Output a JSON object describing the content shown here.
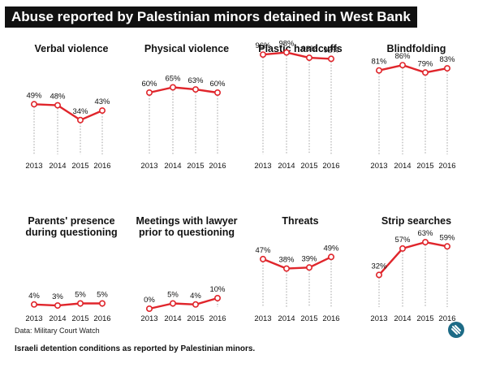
{
  "header": {
    "title": "Abuse reported by Palestinian minors detained in West Bank"
  },
  "footer": {
    "source": "Data: Military Court Watch",
    "caption": "Israeli detention conditions as reported by Palestinian minors."
  },
  "colors": {
    "line": "#e0252b",
    "marker_fill": "#ffffff",
    "text": "#111111",
    "grid": "#888888",
    "logo": "#1d6b86"
  },
  "logo": {
    "icon": "logo-icon"
  },
  "chart_data": [
    {
      "type": "line",
      "title": [
        "Verbal violence"
      ],
      "x": [
        "2013",
        "2014",
        "2015",
        "2016"
      ],
      "values": [
        49,
        48,
        34,
        43
      ],
      "labels": [
        "49%",
        "48%",
        "34%",
        "43%"
      ],
      "ylim": [
        0,
        100
      ]
    },
    {
      "type": "line",
      "title": [
        "Physical violence"
      ],
      "x": [
        "2013",
        "2014",
        "2015",
        "2016"
      ],
      "values": [
        60,
        65,
        63,
        60
      ],
      "labels": [
        "60%",
        "65%",
        "63%",
        "60%"
      ],
      "ylim": [
        0,
        100
      ]
    },
    {
      "type": "line",
      "title": [
        "Plastic handcuffs"
      ],
      "x": [
        "2013",
        "2014",
        "2015",
        "2016"
      ],
      "values": [
        96,
        98,
        93,
        92
      ],
      "labels": [
        "96%",
        "98%",
        "93%",
        "92%"
      ],
      "ylim": [
        0,
        100
      ]
    },
    {
      "type": "line",
      "title": [
        "Blindfolding"
      ],
      "x": [
        "2013",
        "2014",
        "2015",
        "2016"
      ],
      "values": [
        81,
        86,
        79,
        83
      ],
      "labels": [
        "81%",
        "86%",
        "79%",
        "83%"
      ],
      "ylim": [
        0,
        100
      ]
    },
    {
      "type": "line",
      "title": [
        "Parents' presence",
        "during questioning"
      ],
      "x": [
        "2013",
        "2014",
        "2015",
        "2016"
      ],
      "values": [
        4,
        3,
        5,
        5
      ],
      "labels": [
        "4%",
        "3%",
        "5%",
        "5%"
      ],
      "ylim": [
        0,
        100
      ]
    },
    {
      "type": "line",
      "title": [
        "Meetings with lawyer",
        "prior to questioning"
      ],
      "x": [
        "2013",
        "2014",
        "2015",
        "2016"
      ],
      "values": [
        0,
        5,
        4,
        10
      ],
      "labels": [
        "0%",
        "5%",
        "4%",
        "10%"
      ],
      "ylim": [
        0,
        100
      ]
    },
    {
      "type": "line",
      "title": [
        "Threats"
      ],
      "x": [
        "2013",
        "2014",
        "2015",
        "2016"
      ],
      "values": [
        47,
        38,
        39,
        49
      ],
      "labels": [
        "47%",
        "38%",
        "39%",
        "49%"
      ],
      "ylim": [
        0,
        100
      ]
    },
    {
      "type": "line",
      "title": [
        "Strip searches"
      ],
      "x": [
        "2013",
        "2014",
        "2015",
        "2016"
      ],
      "values": [
        32,
        57,
        63,
        59
      ],
      "labels": [
        "32%",
        "57%",
        "63%",
        "59%"
      ],
      "ylim": [
        0,
        100
      ]
    }
  ]
}
